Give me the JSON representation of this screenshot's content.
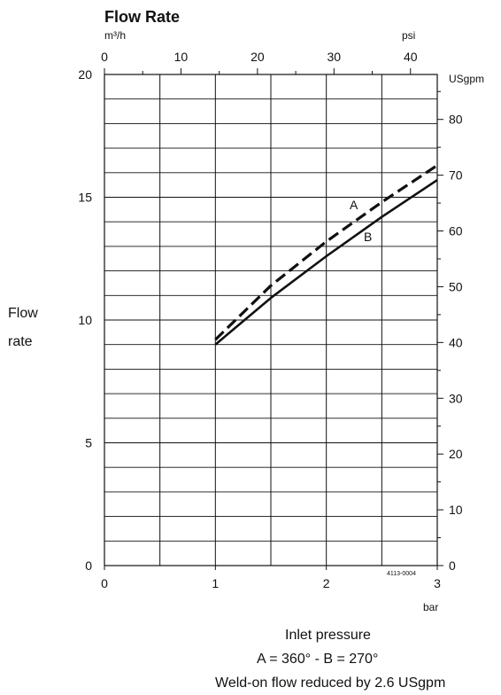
{
  "chart_data": {
    "type": "line",
    "title": "Flow Rate",
    "ylabel_lines": [
      "Flow",
      "rate"
    ],
    "xlabel": "Inlet pressure",
    "captions": [
      "A = 360° - B = 270°",
      "Weld-on flow reduced by 2.6 USgpm"
    ],
    "figure_code": "4113-0004",
    "units": {
      "left": "m³/h",
      "top": "psi",
      "right": "USgpm",
      "bottom": "bar"
    },
    "axes": {
      "bottom": {
        "range": [
          0,
          3
        ],
        "ticks": [
          0,
          1,
          2,
          3
        ]
      },
      "top": {
        "range": [
          0,
          43.5
        ],
        "ticks": [
          0,
          10,
          20,
          30,
          40
        ]
      },
      "left": {
        "range": [
          0,
          20
        ],
        "ticks": [
          0,
          5,
          10,
          15,
          20
        ]
      },
      "right": {
        "range": [
          0,
          88.06
        ],
        "ticks": [
          0,
          10,
          20,
          30,
          40,
          50,
          60,
          70,
          80
        ]
      }
    },
    "grid": true,
    "series": [
      {
        "name": "A",
        "style": "dashed",
        "x": [
          1.0,
          1.5,
          2.0,
          2.5,
          3.0
        ],
        "y": [
          9.2,
          11.4,
          13.2,
          14.8,
          16.3
        ]
      },
      {
        "name": "B",
        "style": "solid",
        "x": [
          1.0,
          1.5,
          2.0,
          2.5,
          3.0
        ],
        "y": [
          9.0,
          10.9,
          12.6,
          14.2,
          15.7
        ]
      }
    ]
  }
}
